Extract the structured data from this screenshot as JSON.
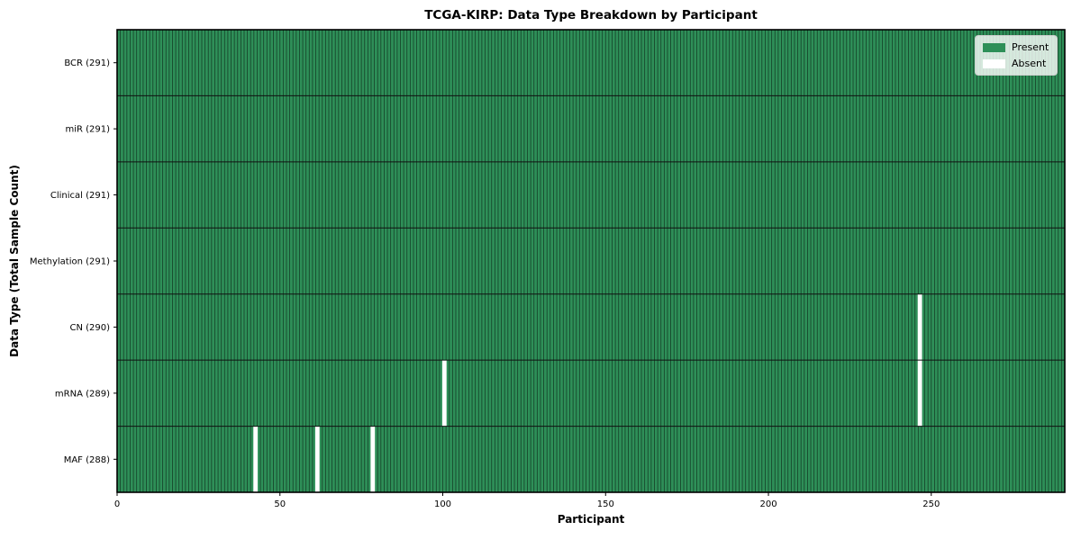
{
  "figure": {
    "background": "#ffffff"
  },
  "chart_data": {
    "type": "heatmap",
    "title": "TCGA-KIRP: Data Type Breakdown by Participant",
    "xlabel": "Participant",
    "ylabel": "Data Type (Total Sample Count)",
    "n_participants": 291,
    "x_range": [
      0,
      291
    ],
    "x_ticks": [
      0,
      50,
      100,
      150,
      200,
      250
    ],
    "grid": false,
    "rows": [
      {
        "label": "BCR (291)",
        "data_type": "BCR",
        "present_count": 291,
        "absent_participants": []
      },
      {
        "label": "miR (291)",
        "data_type": "miR",
        "present_count": 291,
        "absent_participants": []
      },
      {
        "label": "Clinical (291)",
        "data_type": "Clinical",
        "present_count": 291,
        "absent_participants": []
      },
      {
        "label": "Methylation (291)",
        "data_type": "Methylation",
        "present_count": 291,
        "absent_participants": []
      },
      {
        "label": "CN (290)",
        "data_type": "CN",
        "present_count": 290,
        "absent_participants": [
          246
        ]
      },
      {
        "label": "mRNA (289)",
        "data_type": "mRNA",
        "present_count": 289,
        "absent_participants": [
          100,
          246
        ]
      },
      {
        "label": "MAF (288)",
        "data_type": "MAF",
        "present_count": 288,
        "absent_participants": [
          42,
          61,
          78
        ]
      }
    ],
    "legend": {
      "position": "upper right",
      "entries": [
        {
          "label": "Present",
          "color": "#2e8f58"
        },
        {
          "label": "Absent",
          "color": "#ffffff"
        }
      ]
    },
    "colors": {
      "present": "#2e8f58",
      "absent": "#ffffff",
      "cell_border": "#154028",
      "row_separator": "#111111",
      "frame": "#000000",
      "tick_text": "#000000"
    }
  }
}
